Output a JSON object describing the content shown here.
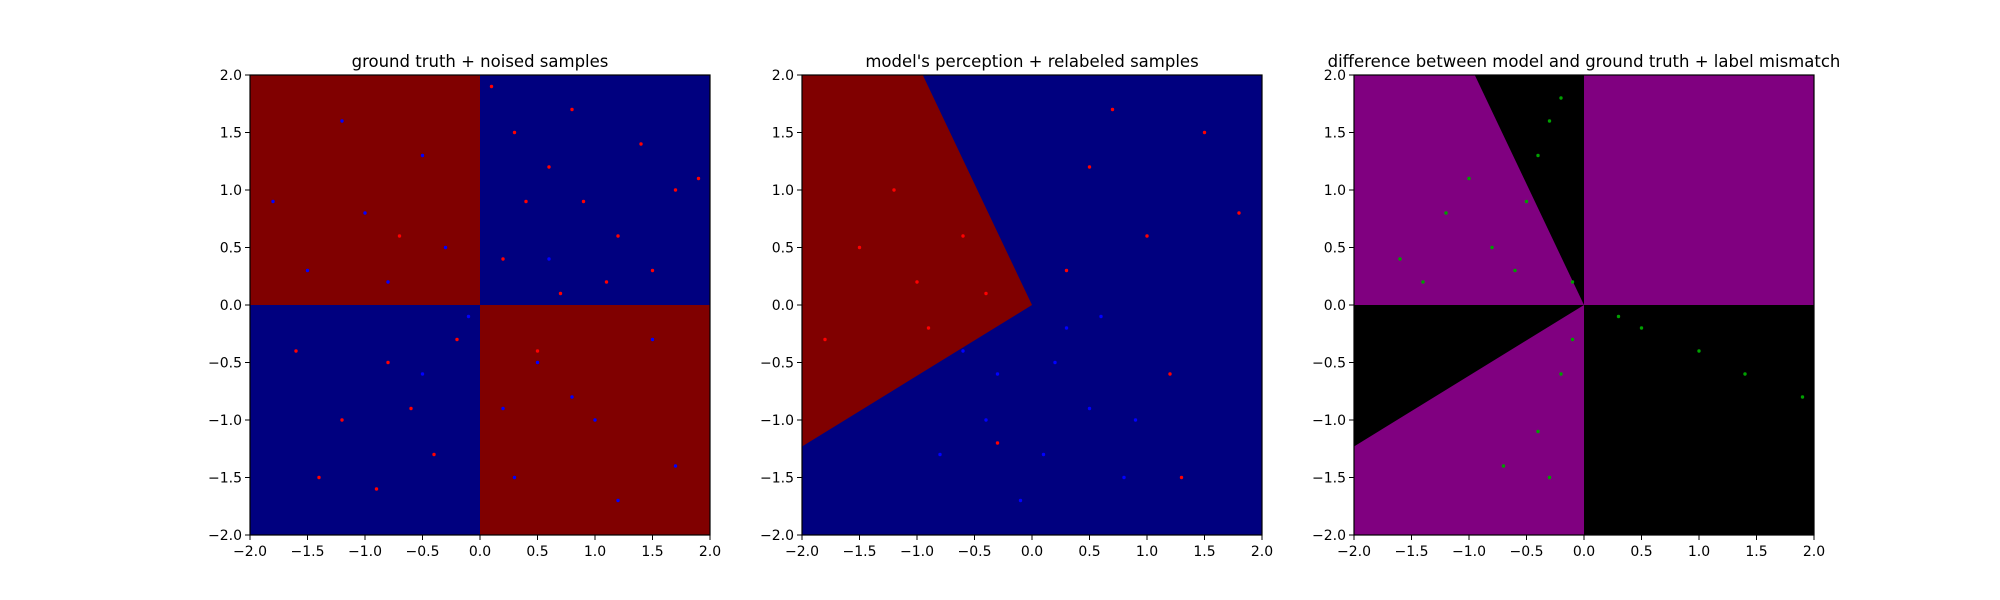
{
  "figure": {
    "panels": [
      {
        "title": "ground truth + noised samples"
      },
      {
        "title": "model's perception + relabeled samples"
      },
      {
        "title": "difference between model and ground truth + label mismatch"
      }
    ]
  },
  "colors": {
    "red_region": "#800000",
    "blue_region": "#00007f",
    "purple_region": "#800080",
    "black_region": "#000000",
    "red_point": "#ff0000",
    "blue_point": "#0000ff",
    "green_point": "#00a000"
  },
  "chart_data": [
    {
      "type": "scatter",
      "title": "ground truth + noised samples",
      "xlabel": "",
      "ylabel": "",
      "xlim": [
        -2.0,
        2.0
      ],
      "ylim": [
        -2.0,
        2.0
      ],
      "xticks": [
        "−2.0",
        "−1.5",
        "−1.0",
        "−0.5",
        "0.0",
        "0.5",
        "1.0",
        "1.5",
        "2.0"
      ],
      "yticks": [
        "−2.0",
        "−1.5",
        "−1.0",
        "−0.5",
        "0.0",
        "0.5",
        "1.0",
        "1.5",
        "2.0"
      ],
      "grid": false,
      "background": "checkerboard: red where x*y<0, blue where x*y>0",
      "series": [
        {
          "color": "red",
          "points": [
            [
              0.1,
              1.9
            ],
            [
              0.3,
              1.5
            ],
            [
              0.6,
              1.2
            ],
            [
              0.9,
              0.9
            ],
            [
              1.2,
              0.6
            ],
            [
              1.5,
              0.3
            ],
            [
              0.2,
              0.4
            ],
            [
              0.8,
              1.7
            ],
            [
              1.7,
              1.0
            ],
            [
              1.1,
              0.2
            ],
            [
              0.4,
              0.9
            ],
            [
              1.4,
              1.4
            ],
            [
              -0.8,
              -0.5
            ],
            [
              -1.2,
              -1.0
            ],
            [
              -0.4,
              -1.3
            ],
            [
              -1.6,
              -0.4
            ],
            [
              -0.9,
              -1.6
            ],
            [
              -0.2,
              -0.3
            ],
            [
              -1.4,
              -1.5
            ],
            [
              -0.6,
              -0.9
            ],
            [
              0.5,
              -0.4
            ],
            [
              -0.7,
              0.6
            ],
            [
              1.9,
              1.1
            ],
            [
              0.7,
              0.1
            ]
          ]
        },
        {
          "color": "blue",
          "points": [
            [
              -0.5,
              1.3
            ],
            [
              -1.0,
              0.8
            ],
            [
              -1.5,
              0.3
            ],
            [
              -0.3,
              0.5
            ],
            [
              -1.2,
              1.6
            ],
            [
              -0.8,
              0.2
            ],
            [
              0.5,
              -0.5
            ],
            [
              1.0,
              -1.0
            ],
            [
              1.5,
              -0.3
            ],
            [
              0.3,
              -1.5
            ],
            [
              1.2,
              -1.7
            ],
            [
              0.8,
              -0.8
            ],
            [
              -0.1,
              -0.1
            ],
            [
              -1.8,
              0.9
            ],
            [
              0.2,
              -0.9
            ],
            [
              1.7,
              -1.4
            ],
            [
              0.6,
              0.4
            ],
            [
              -0.5,
              -0.6
            ]
          ]
        }
      ]
    },
    {
      "type": "scatter",
      "title": "model's perception + relabeled samples",
      "xlabel": "",
      "ylabel": "",
      "xlim": [
        -2.0,
        2.0
      ],
      "ylim": [
        -2.0,
        2.0
      ],
      "xticks": [
        "−2.0",
        "−1.5",
        "−1.0",
        "−0.5",
        "0.0",
        "0.5",
        "1.0",
        "1.5",
        "2.0"
      ],
      "yticks": [
        "−2.0",
        "−1.5",
        "−1.0",
        "−0.5",
        "0.0",
        "0.5",
        "1.0",
        "1.5",
        "2.0"
      ],
      "grid": false,
      "background": "red wedge with vertex (0,0) between boundary to (-0.95,2.0) and boundary to (-2.0,-1.23); blue elsewhere",
      "series": [
        {
          "color": "red",
          "points": [
            [
              -1.5,
              0.5
            ],
            [
              -1.0,
              0.2
            ],
            [
              -0.6,
              0.6
            ],
            [
              -1.8,
              -0.3
            ],
            [
              -0.4,
              0.1
            ],
            [
              -1.2,
              1.0
            ],
            [
              -0.9,
              -0.2
            ],
            [
              0.5,
              1.2
            ],
            [
              1.0,
              0.6
            ],
            [
              1.5,
              1.5
            ],
            [
              0.3,
              0.3
            ],
            [
              1.2,
              -0.6
            ],
            [
              0.7,
              1.7
            ],
            [
              1.8,
              0.8
            ],
            [
              -0.3,
              -1.2
            ],
            [
              1.3,
              -1.5
            ]
          ]
        },
        {
          "color": "blue",
          "points": [
            [
              0.2,
              -0.5
            ],
            [
              -0.4,
              -1.0
            ],
            [
              0.8,
              -1.5
            ],
            [
              -0.8,
              -1.3
            ],
            [
              0.5,
              -0.9
            ],
            [
              -0.1,
              -1.7
            ],
            [
              0.3,
              -0.2
            ],
            [
              0.9,
              -1.0
            ],
            [
              -0.6,
              -0.4
            ],
            [
              0.1,
              -1.3
            ],
            [
              0.6,
              -0.1
            ],
            [
              -0.3,
              -0.6
            ]
          ]
        }
      ]
    },
    {
      "type": "scatter",
      "title": "difference between model and ground truth + label mismatch",
      "xlabel": "",
      "ylabel": "",
      "xlim": [
        -2.0,
        2.0
      ],
      "ylim": [
        -2.0,
        2.0
      ],
      "xticks": [
        "−2.0",
        "−1.5",
        "−1.0",
        "−0.5",
        "0.0",
        "0.5",
        "1.0",
        "1.5",
        "2.0"
      ],
      "yticks": [
        "−2.0",
        "−1.5",
        "−1.0",
        "−0.5",
        "0.0",
        "0.5",
        "1.0",
        "1.5",
        "2.0"
      ],
      "grid": false,
      "background": "purple where model agrees with ground truth, black where it disagrees",
      "series": [
        {
          "color": "green",
          "points": [
            [
              -1.6,
              0.4
            ],
            [
              -1.2,
              0.8
            ],
            [
              -0.8,
              0.5
            ],
            [
              -1.0,
              1.1
            ],
            [
              -1.4,
              0.2
            ],
            [
              -0.6,
              0.3
            ],
            [
              -0.3,
              1.6
            ],
            [
              -0.4,
              1.3
            ],
            [
              -0.2,
              1.8
            ],
            [
              -0.5,
              0.9
            ],
            [
              -0.1,
              0.2
            ],
            [
              0.5,
              -0.2
            ],
            [
              1.0,
              -0.4
            ],
            [
              1.4,
              -0.6
            ],
            [
              1.9,
              -0.8
            ],
            [
              0.3,
              -0.1
            ],
            [
              -0.2,
              -0.6
            ],
            [
              -0.4,
              -1.1
            ],
            [
              -0.3,
              -1.5
            ],
            [
              -0.7,
              -1.4
            ],
            [
              -0.1,
              -0.3
            ]
          ]
        }
      ]
    }
  ]
}
